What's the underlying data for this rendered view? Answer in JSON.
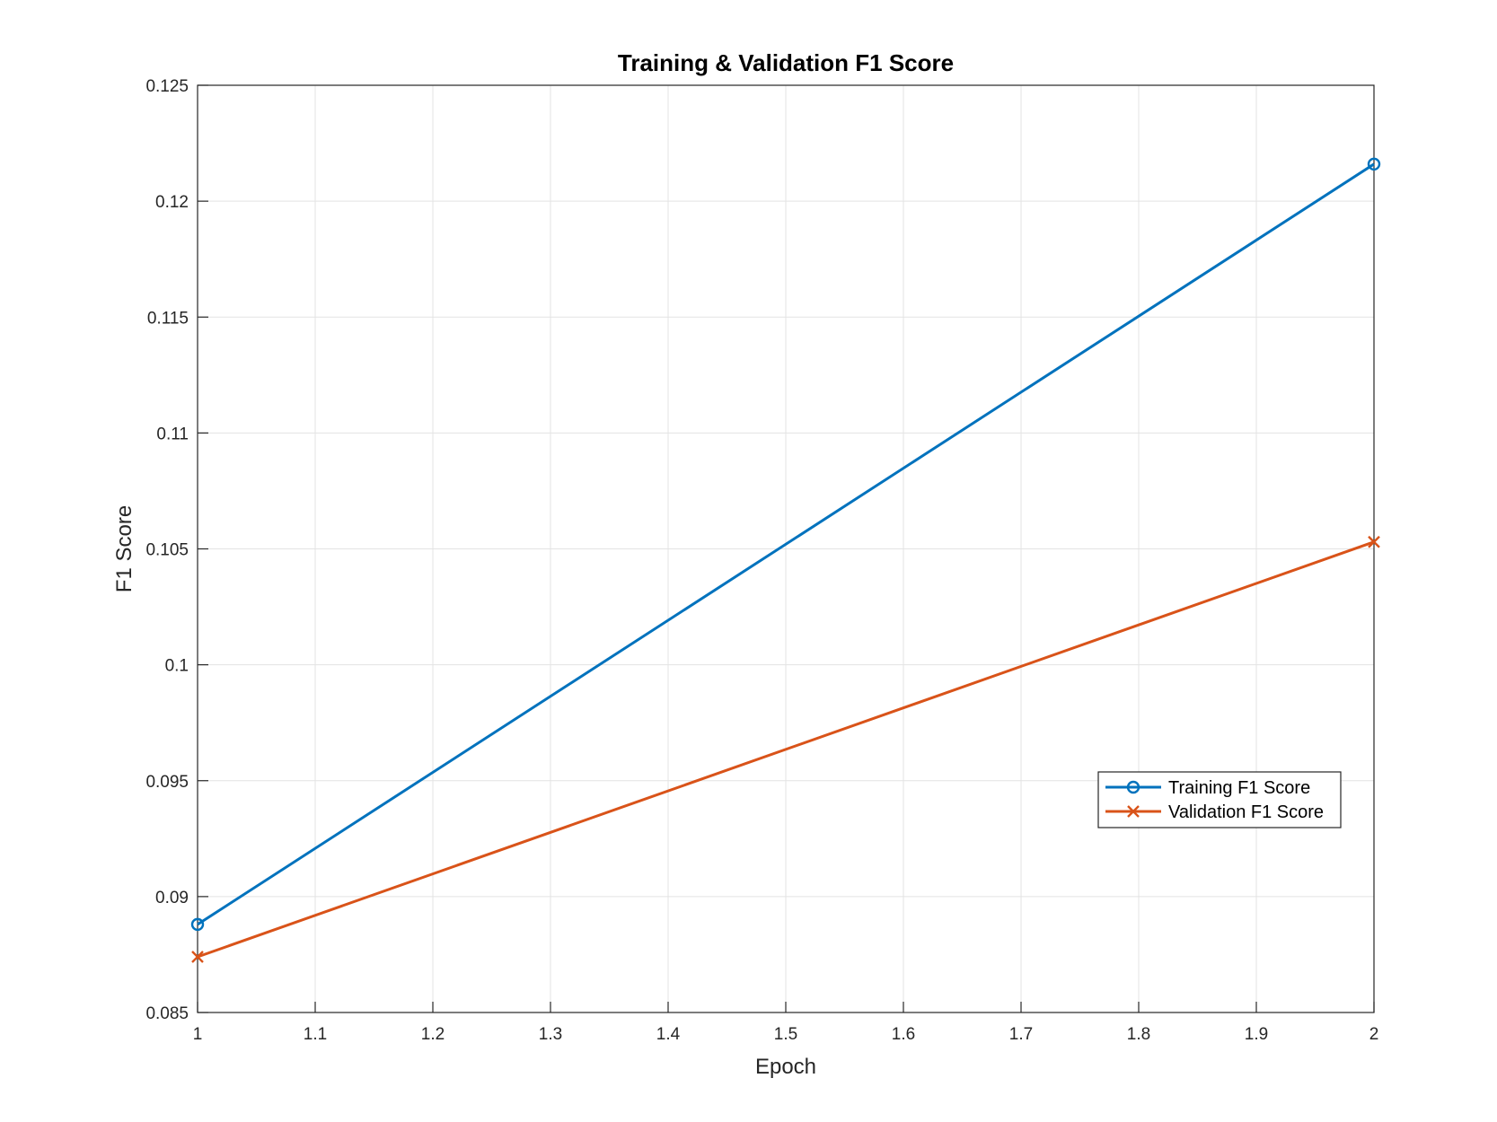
{
  "chart_data": {
    "type": "line",
    "title": "Training & Validation F1 Score",
    "xlabel": "Epoch",
    "ylabel": "F1 Score",
    "xlim": [
      1,
      2
    ],
    "ylim": [
      0.085,
      0.125
    ],
    "x_ticks": [
      "1",
      "1.1",
      "1.2",
      "1.3",
      "1.4",
      "1.5",
      "1.6",
      "1.7",
      "1.8",
      "1.9",
      "2"
    ],
    "y_ticks": [
      "0.085",
      "0.09",
      "0.095",
      "0.1",
      "0.105",
      "0.11",
      "0.115",
      "0.12",
      "0.125"
    ],
    "grid": true,
    "legend_position": "right",
    "x": [
      1,
      2
    ],
    "series": [
      {
        "name": "Training F1 Score",
        "values": [
          0.0888,
          0.1216
        ],
        "color": "#0072BD",
        "marker": "circle"
      },
      {
        "name": "Validation F1 Score",
        "values": [
          0.0874,
          0.1053
        ],
        "color": "#D95319",
        "marker": "x"
      }
    ]
  }
}
